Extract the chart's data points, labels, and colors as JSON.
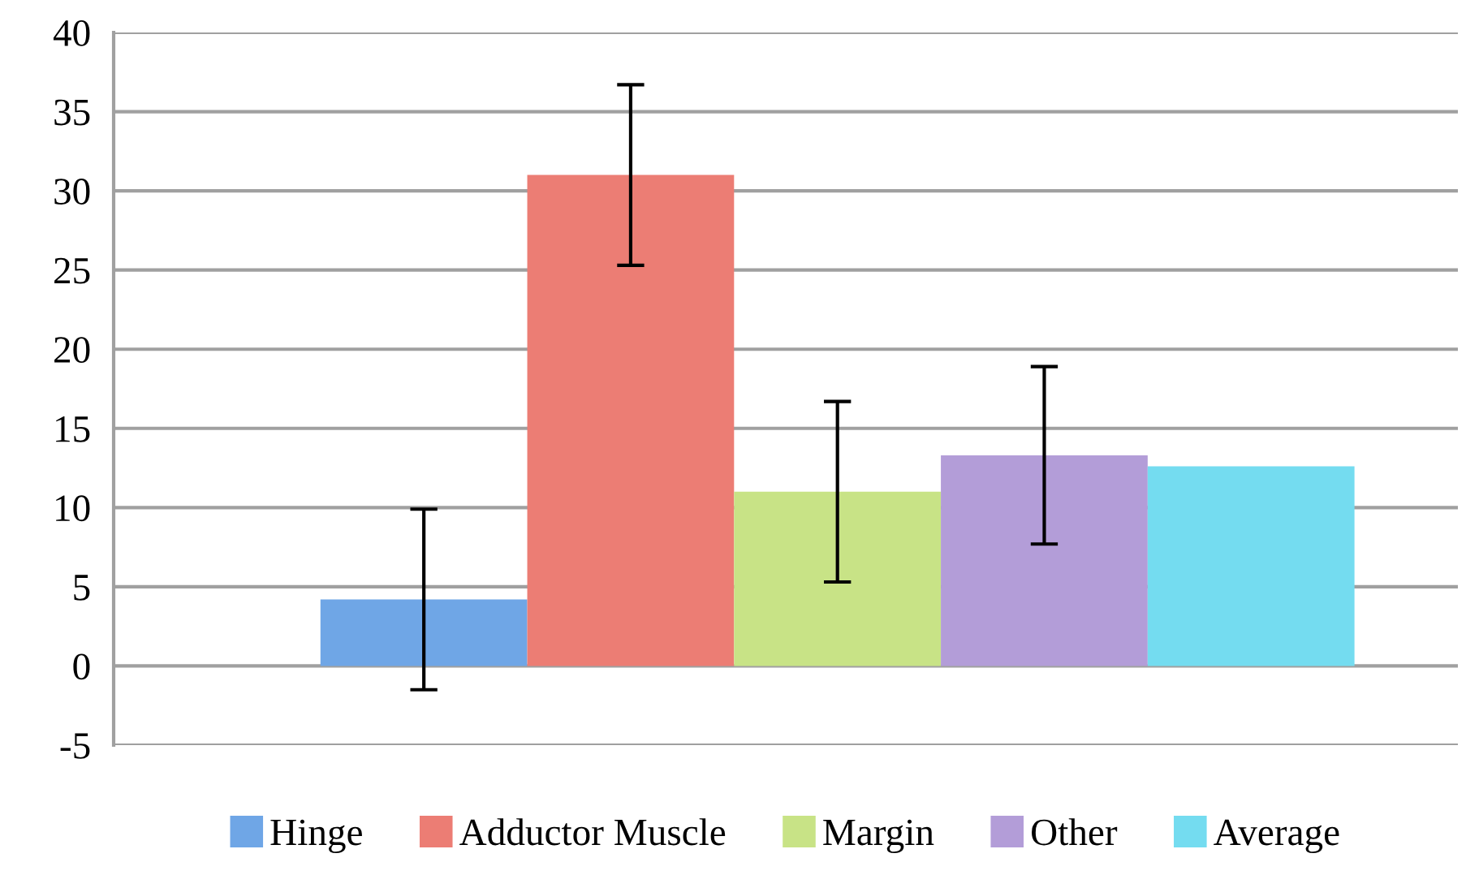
{
  "chart_data": {
    "type": "bar",
    "categories": [
      null
    ],
    "series": [
      {
        "name": "Hinge",
        "color": "#6fa6e6",
        "values": [
          4.2
        ],
        "errors": [
          5.7
        ]
      },
      {
        "name": "Adductor Muscle",
        "color": "#ec7d74",
        "values": [
          31.0
        ],
        "errors": [
          5.7
        ]
      },
      {
        "name": "Margin",
        "color": "#c8e386",
        "values": [
          11.0
        ],
        "errors": [
          5.7
        ]
      },
      {
        "name": "Other",
        "color": "#b39dd8",
        "values": [
          13.3
        ],
        "errors": [
          5.6
        ]
      },
      {
        "name": "Average",
        "color": "#74dcf0",
        "values": [
          12.6
        ],
        "errors": [
          null
        ]
      }
    ],
    "ylim": [
      -5,
      40
    ],
    "yticks": [
      -5,
      0,
      5,
      10,
      15,
      20,
      25,
      30,
      35,
      40
    ],
    "grid": "y",
    "legend": "bottom"
  }
}
